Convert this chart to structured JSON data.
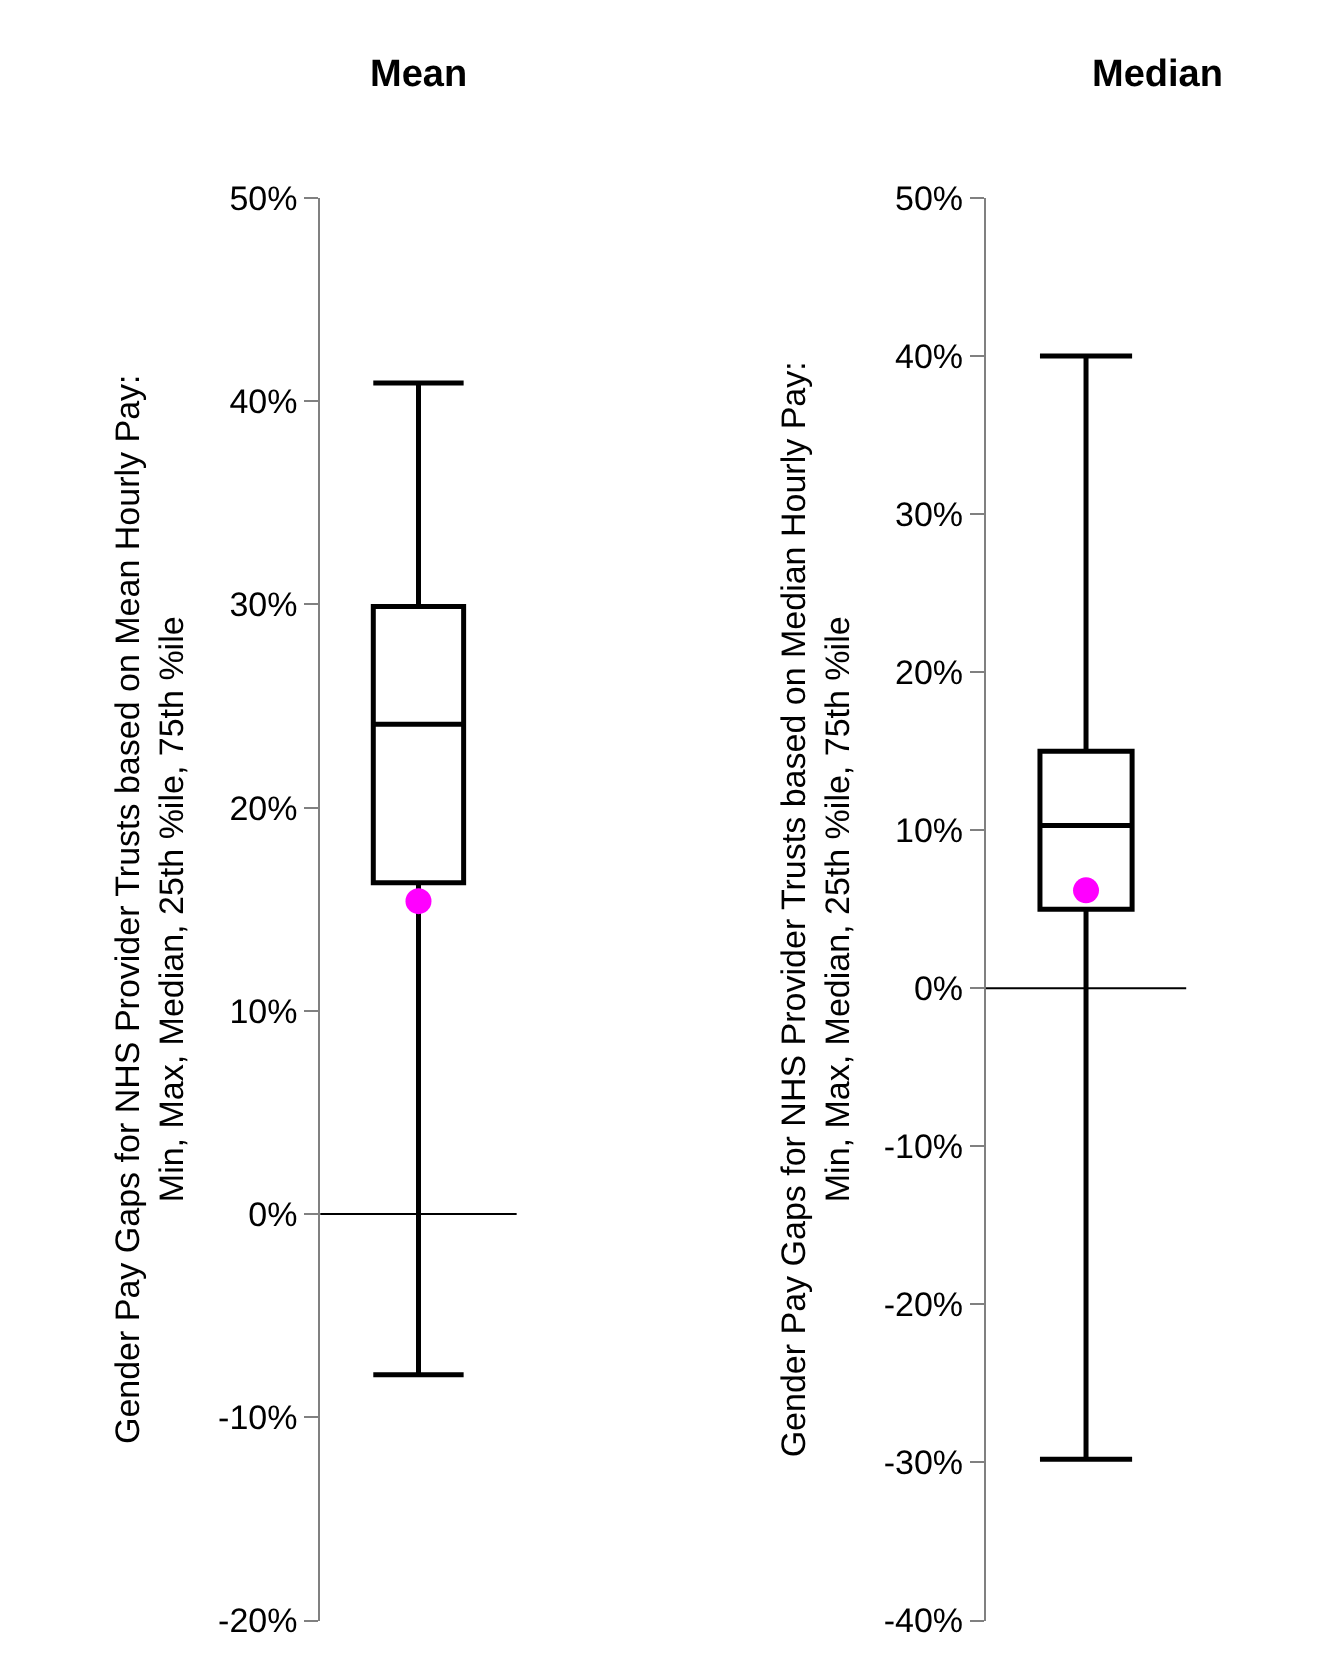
{
  "chart_data": [
    {
      "type": "box",
      "title": "Mean",
      "ylabel": "Gender Pay Gaps for NHS Provider Trusts based on Mean Hourly Pay:\nMin, Max, Median, 25th %ile, 75th %ile",
      "categories": [
        null
      ],
      "color": "#000000",
      "boxes": [
        {
          "low": -7.9,
          "q1": 16.3,
          "median": 24.1,
          "q3": 29.9,
          "high": 40.9
        }
      ],
      "series": [
        {
          "type": "scatter",
          "color": "#ff00ff",
          "values": [
            15.4
          ]
        }
      ],
      "marker": "circle",
      "ylim": [
        -20,
        50
      ],
      "yticks": [
        {
          "value": -20,
          "label": "-20%"
        },
        {
          "value": -10,
          "label": "-10%"
        },
        {
          "value": 0,
          "label": "0%"
        },
        {
          "value": 10,
          "label": "10%"
        },
        {
          "value": 20,
          "label": "20%"
        },
        {
          "value": 30,
          "label": "30%"
        },
        {
          "value": 40,
          "label": "40%"
        },
        {
          "value": 50,
          "label": "50%"
        }
      ],
      "ref_lines": [
        {
          "axis": "y",
          "value": 0,
          "color": "#000000"
        }
      ]
    },
    {
      "type": "box",
      "title": "Median",
      "ylabel": "Gender Pay Gaps for NHS Provider Trusts based on Median Hourly Pay:\nMin, Max, Median, 25th %ile, 75th %ile",
      "categories": [
        null
      ],
      "color": "#000000",
      "boxes": [
        {
          "low": -29.8,
          "q1": 5.0,
          "median": 10.3,
          "q3": 15.0,
          "high": 40.0
        }
      ],
      "series": [
        {
          "type": "scatter",
          "color": "#ff00ff",
          "values": [
            6.2
          ]
        }
      ],
      "marker": "circle",
      "ylim": [
        -40,
        50
      ],
      "yticks": [
        {
          "value": -40,
          "label": "-40%"
        },
        {
          "value": -30,
          "label": "-30%"
        },
        {
          "value": -20,
          "label": "-20%"
        },
        {
          "value": -10,
          "label": "-10%"
        },
        {
          "value": 0,
          "label": "0%"
        },
        {
          "value": 10,
          "label": "10%"
        },
        {
          "value": 20,
          "label": "20%"
        },
        {
          "value": 30,
          "label": "30%"
        },
        {
          "value": 40,
          "label": "40%"
        },
        {
          "value": 50,
          "label": "50%"
        }
      ],
      "ref_lines": [
        {
          "axis": "y",
          "value": 0,
          "color": "#000000"
        }
      ]
    }
  ]
}
